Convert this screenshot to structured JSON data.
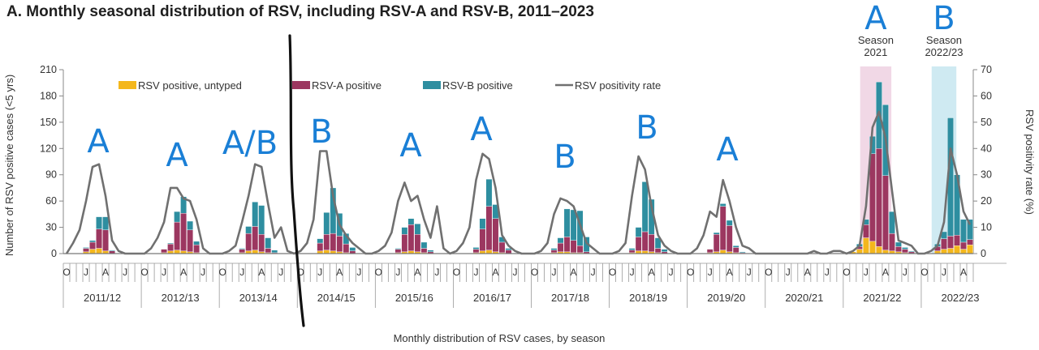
{
  "title": "A.  Monthly seasonal distribution of RSV, including RSV-A and RSV-B, 2011–2023",
  "colors": {
    "untyped": "#f4b71c",
    "rsv_a": "#9c3760",
    "rsv_b": "#2e8ea0",
    "rate": "#707070",
    "highlight_2021": "#f1d8e6",
    "highlight_2022": "#cfeaf2",
    "handwriting": "#1a7fd6",
    "marker": "#111111"
  },
  "chart_data": {
    "type": "bar",
    "stacked": true,
    "xlabel": "Monthly distribution of RSV cases, by season",
    "ylabel": "Number of RSV positive cases (<5 yrs)",
    "y2label": "RSV positivity rate (%)",
    "ylim": [
      0,
      210
    ],
    "y2lim": [
      0,
      70
    ],
    "yticks": [
      0,
      30,
      60,
      90,
      120,
      150,
      180,
      210
    ],
    "y2ticks": [
      0,
      10,
      20,
      30,
      40,
      50,
      60,
      70
    ],
    "month_labels": [
      "O",
      "J",
      "A",
      "J"
    ],
    "seasons": [
      "2011/12",
      "2012/13",
      "2013/14",
      "2014/15",
      "2015/16",
      "2016/17",
      "2017/18",
      "2018/19",
      "2019/20",
      "2020/21",
      "2021/22",
      "2022/23"
    ],
    "legend": {
      "position": "top-left",
      "entries": [
        "RSV positive, untyped",
        "RSV-A positive",
        "RSV-B positive",
        "RSV positivity rate"
      ]
    },
    "series": [
      {
        "name": "RSV positive, untyped",
        "kind": "bar",
        "values": [
          0,
          0,
          0,
          2,
          5,
          6,
          3,
          0,
          0,
          0,
          0,
          0,
          0,
          0,
          0,
          1,
          3,
          4,
          3,
          2,
          1,
          0,
          0,
          0,
          0,
          0,
          0,
          1,
          3,
          4,
          2,
          1,
          0,
          0,
          0,
          0,
          0,
          0,
          0,
          3,
          4,
          3,
          2,
          1,
          0,
          0,
          0,
          0,
          0,
          0,
          0,
          1,
          2,
          3,
          2,
          1,
          0,
          0,
          0,
          0,
          0,
          0,
          0,
          1,
          3,
          4,
          2,
          1,
          0,
          0,
          0,
          0,
          0,
          0,
          0,
          1,
          2,
          2,
          1,
          1,
          0,
          0,
          0,
          0,
          0,
          0,
          0,
          1,
          3,
          3,
          2,
          1,
          0,
          0,
          0,
          0,
          0,
          0,
          0,
          1,
          2,
          4,
          2,
          1,
          0,
          0,
          0,
          0,
          0,
          0,
          0,
          0,
          0,
          0,
          0,
          0,
          0,
          0,
          0,
          0,
          1,
          2,
          5,
          18,
          14,
          8,
          4,
          3,
          2,
          1,
          0,
          0,
          0,
          0,
          3,
          5,
          6,
          9,
          5,
          10
        ]
      },
      {
        "name": "RSV-A positive",
        "kind": "bar",
        "values": [
          0,
          0,
          0,
          4,
          8,
          22,
          24,
          3,
          0,
          0,
          0,
          0,
          0,
          0,
          0,
          4,
          8,
          32,
          43,
          25,
          9,
          0,
          0,
          0,
          0,
          0,
          0,
          4,
          20,
          27,
          20,
          5,
          1,
          0,
          0,
          0,
          0,
          0,
          0,
          9,
          18,
          20,
          18,
          10,
          3,
          0,
          0,
          0,
          0,
          0,
          0,
          4,
          20,
          30,
          20,
          5,
          2,
          0,
          0,
          0,
          0,
          0,
          0,
          4,
          25,
          50,
          38,
          12,
          4,
          0,
          0,
          0,
          0,
          0,
          0,
          3,
          10,
          17,
          14,
          8,
          2,
          0,
          0,
          0,
          0,
          0,
          0,
          3,
          16,
          22,
          20,
          5,
          2,
          0,
          0,
          0,
          0,
          0,
          0,
          4,
          20,
          50,
          30,
          6,
          1,
          0,
          0,
          0,
          0,
          0,
          0,
          0,
          0,
          0,
          0,
          0,
          0,
          0,
          0,
          0,
          0,
          0,
          3,
          15,
          100,
          112,
          85,
          20,
          6,
          4,
          2,
          0,
          0,
          0,
          5,
          12,
          14,
          12,
          8,
          6
        ]
      },
      {
        "name": "RSV-B positive",
        "kind": "bar",
        "values": [
          0,
          0,
          0,
          1,
          2,
          14,
          15,
          1,
          0,
          0,
          0,
          0,
          0,
          0,
          0,
          0,
          1,
          12,
          19,
          10,
          4,
          0,
          0,
          0,
          0,
          0,
          0,
          1,
          8,
          28,
          33,
          12,
          3,
          0,
          0,
          0,
          0,
          0,
          0,
          5,
          25,
          52,
          26,
          12,
          4,
          0,
          0,
          0,
          0,
          0,
          0,
          1,
          8,
          7,
          12,
          7,
          2,
          0,
          0,
          0,
          0,
          0,
          0,
          2,
          12,
          31,
          16,
          6,
          2,
          0,
          0,
          0,
          0,
          0,
          0,
          2,
          6,
          32,
          35,
          40,
          17,
          0,
          0,
          0,
          0,
          0,
          0,
          2,
          11,
          57,
          40,
          12,
          3,
          0,
          0,
          0,
          0,
          0,
          0,
          0,
          2,
          3,
          6,
          2,
          1,
          0,
          0,
          0,
          0,
          0,
          0,
          0,
          0,
          0,
          0,
          0,
          0,
          0,
          0,
          0,
          0,
          0,
          3,
          6,
          20,
          76,
          81,
          25,
          5,
          2,
          1,
          0,
          0,
          0,
          3,
          8,
          135,
          69,
          26,
          23
        ]
      },
      {
        "name": "RSV positivity rate",
        "kind": "line",
        "axis": "right",
        "values": [
          0,
          4,
          9,
          20,
          33,
          34,
          22,
          5,
          1,
          0,
          0,
          0,
          0,
          2,
          6,
          12,
          25,
          25,
          21,
          20,
          13,
          2,
          0,
          0,
          0,
          1,
          3,
          12,
          22,
          34,
          33,
          19,
          6,
          10,
          1,
          0,
          1,
          4,
          13,
          39,
          39,
          22,
          11,
          7,
          4,
          2,
          0,
          0,
          1,
          3,
          8,
          20,
          27,
          20,
          22,
          13,
          6,
          18,
          2,
          0,
          1,
          4,
          10,
          28,
          38,
          36,
          25,
          7,
          3,
          1,
          0,
          0,
          0,
          1,
          4,
          15,
          21,
          20,
          18,
          11,
          4,
          2,
          0,
          0,
          0,
          1,
          4,
          22,
          37,
          32,
          18,
          7,
          3,
          1,
          0,
          0,
          0,
          2,
          7,
          16,
          14,
          28,
          20,
          10,
          3,
          2,
          0,
          0,
          0,
          0,
          0,
          0,
          0,
          0,
          0,
          1,
          0,
          0,
          1,
          1,
          0,
          1,
          3,
          18,
          48,
          54,
          44,
          24,
          5,
          4,
          3,
          0,
          0,
          1,
          3,
          12,
          40,
          30,
          16,
          11
        ]
      }
    ],
    "highlights": [
      {
        "label": "Season\n2021",
        "from_index": 123,
        "to_index": 126
      },
      {
        "label": "Season\n2022/23",
        "from_index": 134,
        "to_index": 136
      }
    ],
    "annotations": [
      {
        "text": "A",
        "season": "2011/12"
      },
      {
        "text": "A",
        "season": "2012/13"
      },
      {
        "text": "A/B",
        "season": "2013/14"
      },
      {
        "text": "B",
        "season": "2014/15"
      },
      {
        "text": "A",
        "season": "2015/16"
      },
      {
        "text": "A",
        "season": "2016/17"
      },
      {
        "text": "B",
        "season": "2017/18"
      },
      {
        "text": "B",
        "season": "2018/19"
      },
      {
        "text": "A",
        "season": "2019/20"
      },
      {
        "text": "A",
        "highlight": 0
      },
      {
        "text": "B",
        "highlight": 1
      }
    ]
  }
}
